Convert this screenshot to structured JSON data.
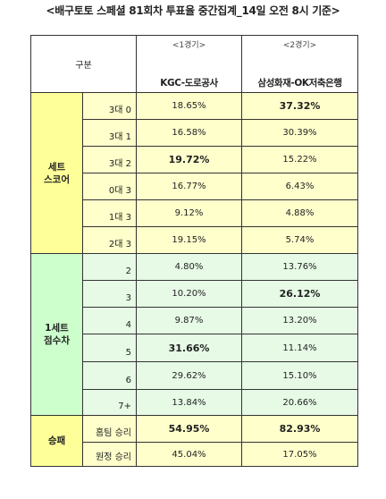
{
  "title": "<배구토토 스페셜 81회차 투표율 중간집계_14일 오전 8시 기준>",
  "header": {
    "gubun": "구분",
    "games": [
      {
        "number": "<1경기>",
        "teams": "KGC-도로공사"
      },
      {
        "number": "<2경기>",
        "teams": "삼성화재-OK저축은행"
      }
    ]
  },
  "sections": [
    {
      "label_lines": [
        "세트",
        "스코어"
      ],
      "color": "#ffff99",
      "rows": [
        {
          "label": "3대 0",
          "g1": "18.65%",
          "g2": "37.32%",
          "g1_bold": false,
          "g2_bold": true
        },
        {
          "label": "3대 1",
          "g1": "16.58%",
          "g2": "30.39%",
          "g1_bold": false,
          "g2_bold": false
        },
        {
          "label": "3대 2",
          "g1": "19.72%",
          "g2": "15.22%",
          "g1_bold": true,
          "g2_bold": false
        },
        {
          "label": "0대 3",
          "g1": "16.77%",
          "g2": "6.43%",
          "g1_bold": false,
          "g2_bold": false
        },
        {
          "label": "1대 3",
          "g1": "9.12%",
          "g2": "4.88%",
          "g1_bold": false,
          "g2_bold": false
        },
        {
          "label": "2대 3",
          "g1": "19.15%",
          "g2": "5.74%",
          "g1_bold": false,
          "g2_bold": false
        }
      ]
    },
    {
      "label_lines": [
        "1세트",
        "점수차"
      ],
      "color": "#ccffcc",
      "rows": [
        {
          "label": "2",
          "g1": "4.80%",
          "g2": "13.76%",
          "g1_bold": false,
          "g2_bold": false
        },
        {
          "label": "3",
          "g1": "10.20%",
          "g2": "26.12%",
          "g1_bold": false,
          "g2_bold": true
        },
        {
          "label": "4",
          "g1": "9.87%",
          "g2": "13.20%",
          "g1_bold": false,
          "g2_bold": false
        },
        {
          "label": "5",
          "g1": "31.66%",
          "g2": "11.14%",
          "g1_bold": true,
          "g2_bold": false
        },
        {
          "label": "6",
          "g1": "29.62%",
          "g2": "15.10%",
          "g1_bold": false,
          "g2_bold": false
        },
        {
          "label": "7+",
          "g1": "13.84%",
          "g2": "20.66%",
          "g1_bold": false,
          "g2_bold": false
        }
      ]
    },
    {
      "label_lines": [
        "승패"
      ],
      "color": "#ffff99",
      "rows": [
        {
          "label": "홈팀 승리",
          "g1": "54.95%",
          "g2": "82.93%",
          "g1_bold": true,
          "g2_bold": true
        },
        {
          "label": "원정 승리",
          "g1": "45.04%",
          "g2": "17.05%",
          "g1_bold": false,
          "g2_bold": false
        }
      ]
    }
  ]
}
